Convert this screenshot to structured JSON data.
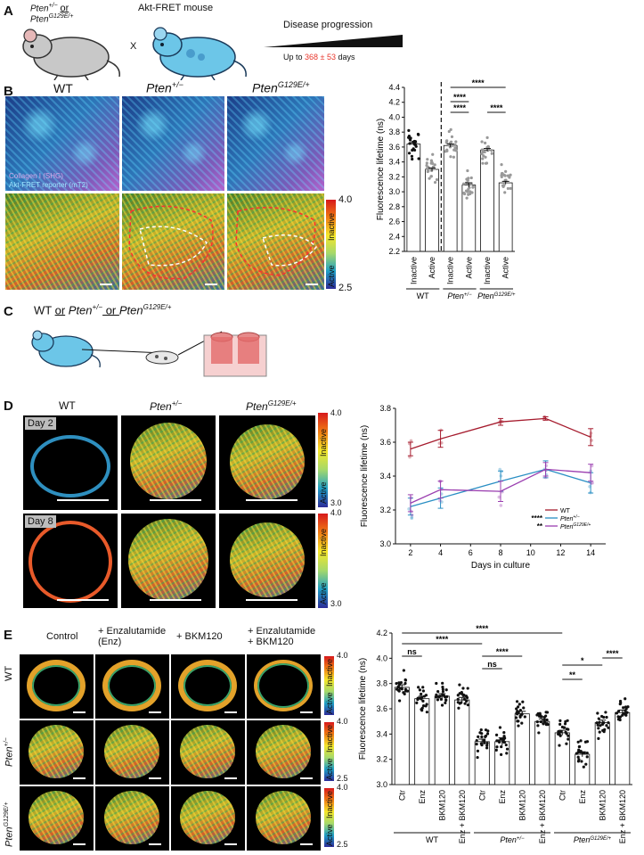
{
  "panels": {
    "A": {
      "letter": "A",
      "mouse1_line1": "Pten",
      "mouse1_sup1": "+/−",
      "mouse1_or": "or",
      "mouse1_line2": "Pten",
      "mouse1_sup2": "G129E/+",
      "cross": "X",
      "mouse2_label": "Akt-FRET mouse",
      "progression_label": "Disease progression",
      "upto_prefix": "Up to ",
      "upto_value": "368 ± 53",
      "upto_suffix": " days",
      "accent_color": "#e8362c"
    },
    "B": {
      "letter": "B",
      "col_wt": "WT",
      "col_pten": "Pten",
      "col_pten_sup": "+/−",
      "col_g129": "Pten",
      "col_g129_sup": "G129E/+",
      "legend_collagen": "Collagen I (SHG)",
      "legend_akt": "Akt-FRET reporter (mT2)",
      "cbar_top": "4.0",
      "cbar_bottom": "2.5",
      "cbar_inactive": "Inactive",
      "cbar_active": "Active"
    },
    "C": {
      "letter": "C",
      "label_a": "WT ",
      "label_or1": "or",
      "label_b": " Pten",
      "label_b_sup": "+/−",
      "label_or2": " or ",
      "label_c": "Pten",
      "label_c_sup": "G129E/+"
    },
    "D": {
      "letter": "D",
      "col_wt": "WT",
      "col_pten": "Pten",
      "col_pten_sup": "+/−",
      "col_g129": "Pten",
      "col_g129_sup": "G129E/+",
      "day2": "Day 2",
      "day8": "Day 8",
      "cbar_top": "4.0",
      "cbar_bottom": "3.0",
      "cbar_inactive": "Inactive",
      "cbar_active": "Active"
    },
    "E": {
      "letter": "E",
      "col_control": "Control",
      "col_enz_1": "+ Enzalutamide",
      "col_enz_2": "(Enz)",
      "col_bkm": "+ BKM120",
      "col_combo_1": "+ Enzalutamide",
      "col_combo_2": "+ BKM120",
      "row_wt": "WT",
      "row_pten": "Pten",
      "row_pten_sup": "+/−",
      "row_g129": "Pten",
      "row_g129_sup": "G129E/+",
      "cbar_top": "4.0",
      "cbar_bottom": "2.5",
      "cbar_inactive": "Inactive",
      "cbar_active": "Active"
    }
  },
  "chart_data": [
    {
      "id": "B",
      "type": "bar",
      "ylabel": "Fluorescence lifetime (ns)",
      "ylim": [
        2.2,
        4.4
      ],
      "yticks": [
        2.2,
        2.4,
        2.6,
        2.8,
        3.0,
        3.2,
        3.4,
        3.6,
        3.8,
        4.0,
        4.2,
        4.4
      ],
      "categories": [
        "Inactive",
        "Active",
        "Inactive",
        "Active",
        "Inactive",
        "Active"
      ],
      "values": [
        3.64,
        3.3,
        3.62,
        3.09,
        3.56,
        3.12
      ],
      "errors": [
        0.02,
        0.02,
        0.02,
        0.03,
        0.02,
        0.02
      ],
      "dot_color": [
        "#111111",
        "#999999",
        "#999999",
        "#999999",
        "#999999",
        "#999999"
      ],
      "groups": [
        {
          "label": "WT",
          "italic": false,
          "sup": "",
          "span": [
            0,
            1
          ]
        },
        {
          "label": "Pten",
          "italic": true,
          "sup": "+/−",
          "span": [
            2,
            3
          ]
        },
        {
          "label": "Pten",
          "italic": true,
          "sup": "G129E/+",
          "span": [
            4,
            5
          ]
        }
      ],
      "significance": [
        {
          "from": 2,
          "to": 3,
          "label": "****"
        },
        {
          "from": 2,
          "to": 5,
          "label": "****"
        },
        {
          "from": 2,
          "to": 3,
          "label": "****"
        },
        {
          "from": 4,
          "to": 5,
          "label": "****"
        }
      ],
      "divider_after": 1
    },
    {
      "id": "D",
      "type": "line",
      "ylabel": "Fluorescence lifetime (ns)",
      "xlabel": "Days in culture",
      "ylim": [
        3.0,
        3.8
      ],
      "yticks": [
        3.0,
        3.2,
        3.4,
        3.6,
        3.8
      ],
      "xlim": [
        1,
        15
      ],
      "xticks": [
        2,
        4,
        6,
        8,
        10,
        12,
        14
      ],
      "x": [
        2,
        4,
        8,
        11,
        14
      ],
      "series": [
        {
          "name": "WT",
          "color": "#a61c2e",
          "values": [
            3.56,
            3.62,
            3.72,
            3.74,
            3.63
          ],
          "errors": [
            0.04,
            0.05,
            0.02,
            0.01,
            0.05
          ]
        },
        {
          "name": "Pten",
          "sup": "+/−",
          "color": "#2a8fc4",
          "values": [
            3.22,
            3.27,
            3.37,
            3.44,
            3.36
          ],
          "errors": [
            0.05,
            0.06,
            0.06,
            0.05,
            0.06
          ]
        },
        {
          "name": "Pten",
          "sup": "G129E/+",
          "color": "#9b3fb0",
          "values": [
            3.24,
            3.32,
            3.31,
            3.44,
            3.42
          ],
          "errors": [
            0.05,
            0.05,
            0.06,
            0.04,
            0.05
          ]
        }
      ],
      "legend_sig": [
        "****",
        "**"
      ]
    },
    {
      "id": "E",
      "type": "bar",
      "ylabel": "Fluorescence lifetime (ns)",
      "ylim": [
        3.0,
        4.2
      ],
      "yticks": [
        3.0,
        3.2,
        3.4,
        3.6,
        3.8,
        4.0,
        4.2
      ],
      "categories": [
        "Ctr",
        "Enz",
        "BKM120",
        "Enz + BKM120",
        "Ctr",
        "Enz",
        "BKM120",
        "Enz + BKM120",
        "Ctr",
        "Enz",
        "BKM120",
        "Enz + BKM120"
      ],
      "values": [
        3.77,
        3.68,
        3.7,
        3.67,
        3.34,
        3.34,
        3.56,
        3.5,
        3.41,
        3.24,
        3.49,
        3.57
      ],
      "errors": [
        0.02,
        0.02,
        0.02,
        0.02,
        0.02,
        0.03,
        0.02,
        0.02,
        0.02,
        0.02,
        0.02,
        0.02
      ],
      "groups": [
        {
          "label": "WT",
          "italic": false,
          "sup": "",
          "span": [
            0,
            3
          ]
        },
        {
          "label": "Pten",
          "italic": true,
          "sup": "+/−",
          "span": [
            4,
            7
          ]
        },
        {
          "label": "Pten",
          "italic": true,
          "sup": "G129E/+",
          "span": [
            8,
            11
          ]
        }
      ],
      "significance": [
        {
          "from": 0,
          "to": 8,
          "label": "****"
        },
        {
          "from": 0,
          "to": 4,
          "label": "****"
        },
        {
          "from": 0,
          "to": 1,
          "label": "ns"
        },
        {
          "from": 4,
          "to": 6,
          "label": "****"
        },
        {
          "from": 4,
          "to": 5,
          "label": "ns"
        },
        {
          "from": 8,
          "to": 10,
          "label": "*"
        },
        {
          "from": 8,
          "to": 9,
          "label": "**"
        },
        {
          "from": 10,
          "to": 11,
          "label": "****"
        }
      ]
    }
  ]
}
